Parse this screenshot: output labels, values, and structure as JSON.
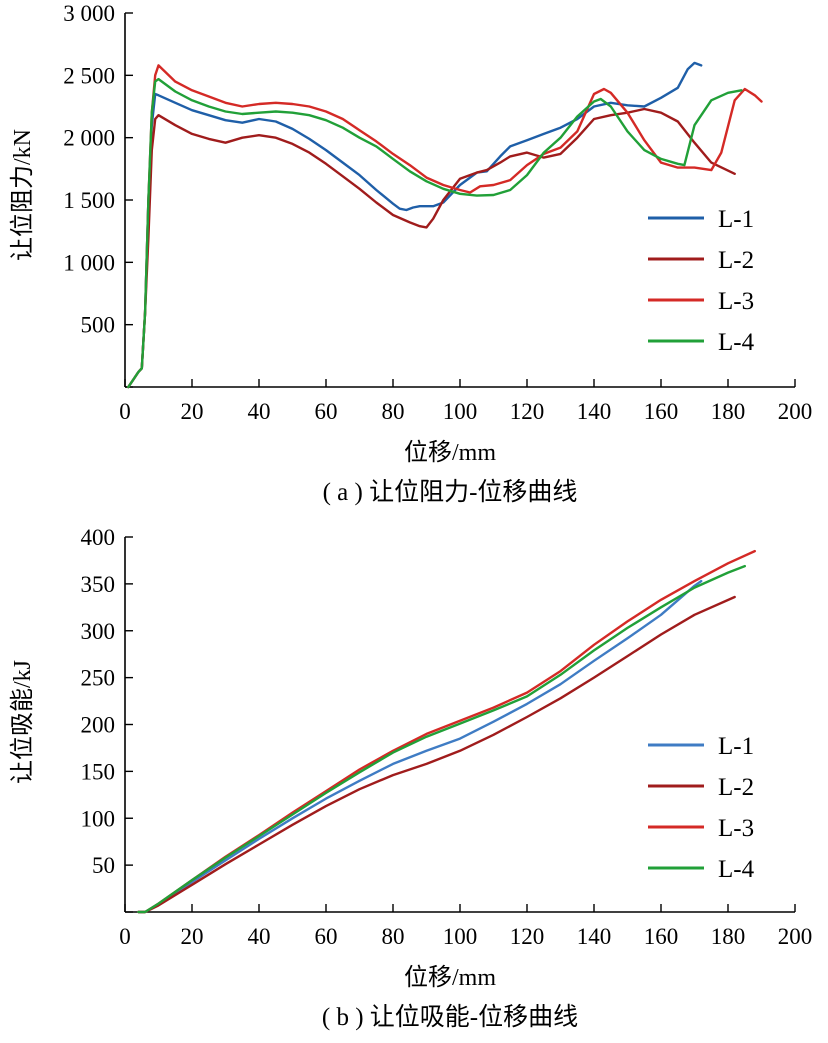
{
  "chart_data": [
    {
      "type": "line",
      "panel_id": "a",
      "caption": "( a ) 让位阻力-位移曲线",
      "xlabel": "位移/mm",
      "ylabel": "让位阻力/kN",
      "xlim": [
        0,
        200
      ],
      "ylim": [
        0,
        3000
      ],
      "x_ticks": [
        "0",
        "20",
        "40",
        "60",
        "80",
        "100",
        "120",
        "140",
        "160",
        "180",
        "200"
      ],
      "y_ticks": [
        "",
        "500",
        "1 000",
        "1 500",
        "2 000",
        "2 500",
        "3 000"
      ],
      "grid": false,
      "legend_position": "right",
      "series": [
        {
          "name": "L-1",
          "color": "#1f5fa8",
          "points": [
            [
              1,
              0
            ],
            [
              2,
              40
            ],
            [
              4,
              120
            ],
            [
              5,
              150
            ],
            [
              6,
              600
            ],
            [
              7,
              1500
            ],
            [
              8,
              2100
            ],
            [
              9,
              2350
            ],
            [
              10,
              2340
            ],
            [
              15,
              2280
            ],
            [
              20,
              2220
            ],
            [
              25,
              2180
            ],
            [
              30,
              2140
            ],
            [
              35,
              2120
            ],
            [
              40,
              2150
            ],
            [
              45,
              2130
            ],
            [
              50,
              2070
            ],
            [
              55,
              1990
            ],
            [
              60,
              1900
            ],
            [
              65,
              1800
            ],
            [
              70,
              1700
            ],
            [
              75,
              1580
            ],
            [
              80,
              1470
            ],
            [
              82,
              1430
            ],
            [
              84,
              1420
            ],
            [
              86,
              1440
            ],
            [
              88,
              1450
            ],
            [
              92,
              1450
            ],
            [
              95,
              1480
            ],
            [
              100,
              1620
            ],
            [
              105,
              1720
            ],
            [
              108,
              1730
            ],
            [
              112,
              1850
            ],
            [
              115,
              1930
            ],
            [
              120,
              1980
            ],
            [
              125,
              2030
            ],
            [
              130,
              2080
            ],
            [
              135,
              2150
            ],
            [
              140,
              2250
            ],
            [
              145,
              2280
            ],
            [
              150,
              2260
            ],
            [
              155,
              2250
            ],
            [
              160,
              2320
            ],
            [
              165,
              2400
            ],
            [
              168,
              2550
            ],
            [
              170,
              2600
            ],
            [
              172,
              2580
            ]
          ]
        },
        {
          "name": "L-2",
          "color": "#a01c1c",
          "points": [
            [
              1,
              0
            ],
            [
              2,
              40
            ],
            [
              4,
              120
            ],
            [
              5,
              150
            ],
            [
              6,
              600
            ],
            [
              7,
              1200
            ],
            [
              8,
              1900
            ],
            [
              9,
              2150
            ],
            [
              10,
              2180
            ],
            [
              15,
              2100
            ],
            [
              20,
              2030
            ],
            [
              25,
              1990
            ],
            [
              30,
              1960
            ],
            [
              35,
              2000
            ],
            [
              40,
              2020
            ],
            [
              45,
              2000
            ],
            [
              50,
              1950
            ],
            [
              55,
              1880
            ],
            [
              60,
              1790
            ],
            [
              65,
              1690
            ],
            [
              70,
              1590
            ],
            [
              75,
              1480
            ],
            [
              80,
              1380
            ],
            [
              85,
              1320
            ],
            [
              88,
              1290
            ],
            [
              90,
              1280
            ],
            [
              92,
              1350
            ],
            [
              95,
              1500
            ],
            [
              100,
              1670
            ],
            [
              105,
              1720
            ],
            [
              108,
              1740
            ],
            [
              112,
              1800
            ],
            [
              115,
              1850
            ],
            [
              120,
              1880
            ],
            [
              125,
              1840
            ],
            [
              130,
              1870
            ],
            [
              135,
              2000
            ],
            [
              140,
              2150
            ],
            [
              145,
              2180
            ],
            [
              150,
              2200
            ],
            [
              155,
              2230
            ],
            [
              160,
              2200
            ],
            [
              165,
              2130
            ],
            [
              170,
              1960
            ],
            [
              175,
              1800
            ],
            [
              182,
              1710
            ]
          ]
        },
        {
          "name": "L-3",
          "color": "#d42a26",
          "points": [
            [
              1,
              0
            ],
            [
              2,
              40
            ],
            [
              4,
              120
            ],
            [
              5,
              150
            ],
            [
              6,
              600
            ],
            [
              7,
              1500
            ],
            [
              8,
              2200
            ],
            [
              9,
              2500
            ],
            [
              10,
              2580
            ],
            [
              15,
              2450
            ],
            [
              20,
              2380
            ],
            [
              25,
              2330
            ],
            [
              30,
              2280
            ],
            [
              35,
              2250
            ],
            [
              40,
              2270
            ],
            [
              45,
              2280
            ],
            [
              50,
              2270
            ],
            [
              55,
              2250
            ],
            [
              60,
              2210
            ],
            [
              65,
              2150
            ],
            [
              70,
              2060
            ],
            [
              75,
              1970
            ],
            [
              80,
              1870
            ],
            [
              85,
              1780
            ],
            [
              90,
              1680
            ],
            [
              95,
              1620
            ],
            [
              100,
              1580
            ],
            [
              103,
              1560
            ],
            [
              106,
              1610
            ],
            [
              110,
              1620
            ],
            [
              115,
              1660
            ],
            [
              120,
              1780
            ],
            [
              125,
              1870
            ],
            [
              130,
              1920
            ],
            [
              135,
              2050
            ],
            [
              140,
              2350
            ],
            [
              143,
              2390
            ],
            [
              145,
              2360
            ],
            [
              150,
              2200
            ],
            [
              155,
              1980
            ],
            [
              160,
              1800
            ],
            [
              165,
              1760
            ],
            [
              170,
              1760
            ],
            [
              175,
              1740
            ],
            [
              178,
              1880
            ],
            [
              182,
              2300
            ],
            [
              185,
              2390
            ],
            [
              188,
              2340
            ],
            [
              190,
              2290
            ]
          ]
        },
        {
          "name": "L-4",
          "color": "#21a038",
          "points": [
            [
              1,
              0
            ],
            [
              2,
              40
            ],
            [
              4,
              120
            ],
            [
              5,
              150
            ],
            [
              6,
              600
            ],
            [
              7,
              1500
            ],
            [
              8,
              2200
            ],
            [
              9,
              2450
            ],
            [
              10,
              2470
            ],
            [
              15,
              2370
            ],
            [
              20,
              2300
            ],
            [
              25,
              2250
            ],
            [
              30,
              2210
            ],
            [
              35,
              2190
            ],
            [
              40,
              2200
            ],
            [
              45,
              2210
            ],
            [
              50,
              2200
            ],
            [
              55,
              2180
            ],
            [
              60,
              2140
            ],
            [
              65,
              2080
            ],
            [
              70,
              2000
            ],
            [
              75,
              1930
            ],
            [
              80,
              1830
            ],
            [
              85,
              1730
            ],
            [
              90,
              1650
            ],
            [
              95,
              1590
            ],
            [
              100,
              1550
            ],
            [
              105,
              1535
            ],
            [
              110,
              1540
            ],
            [
              115,
              1580
            ],
            [
              120,
              1700
            ],
            [
              125,
              1880
            ],
            [
              130,
              2000
            ],
            [
              135,
              2170
            ],
            [
              140,
              2290
            ],
            [
              142,
              2310
            ],
            [
              145,
              2250
            ],
            [
              150,
              2050
            ],
            [
              155,
              1900
            ],
            [
              160,
              1830
            ],
            [
              165,
              1790
            ],
            [
              167,
              1780
            ],
            [
              170,
              2100
            ],
            [
              175,
              2300
            ],
            [
              180,
              2360
            ],
            [
              184,
              2380
            ]
          ]
        }
      ]
    },
    {
      "type": "line",
      "panel_id": "b",
      "caption": "( b ) 让位吸能-位移曲线",
      "xlabel": "位移/mm",
      "ylabel": "让位吸能/kJ",
      "xlim": [
        0,
        200
      ],
      "ylim": [
        0,
        400
      ],
      "x_ticks": [
        "0",
        "20",
        "40",
        "60",
        "80",
        "100",
        "120",
        "140",
        "160",
        "180",
        "200"
      ],
      "y_ticks": [
        "",
        "50",
        "100",
        "150",
        "200",
        "250",
        "300",
        "350",
        "400"
      ],
      "grid": false,
      "legend_position": "right",
      "series": [
        {
          "name": "L-1",
          "color": "#3f7cc4",
          "points": [
            [
              4,
              0
            ],
            [
              6,
              0
            ],
            [
              10,
              8
            ],
            [
              20,
              32
            ],
            [
              30,
              55
            ],
            [
              40,
              78
            ],
            [
              50,
              100
            ],
            [
              60,
              121
            ],
            [
              70,
              140
            ],
            [
              80,
              158
            ],
            [
              90,
              172
            ],
            [
              100,
              185
            ],
            [
              110,
              203
            ],
            [
              120,
              222
            ],
            [
              130,
              243
            ],
            [
              140,
              268
            ],
            [
              150,
              292
            ],
            [
              160,
              317
            ],
            [
              170,
              348
            ],
            [
              172,
              353
            ]
          ]
        },
        {
          "name": "L-2",
          "color": "#a01c1c",
          "points": [
            [
              4,
              0
            ],
            [
              6,
              0
            ],
            [
              10,
              7
            ],
            [
              20,
              29
            ],
            [
              30,
              51
            ],
            [
              40,
              72
            ],
            [
              50,
              93
            ],
            [
              60,
              113
            ],
            [
              70,
              131
            ],
            [
              80,
              146
            ],
            [
              90,
              158
            ],
            [
              100,
              172
            ],
            [
              110,
              189
            ],
            [
              120,
              208
            ],
            [
              130,
              228
            ],
            [
              140,
              250
            ],
            [
              150,
              273
            ],
            [
              160,
              296
            ],
            [
              170,
              317
            ],
            [
              182,
              336
            ]
          ]
        },
        {
          "name": "L-3",
          "color": "#d42a26",
          "points": [
            [
              4,
              0
            ],
            [
              6,
              0
            ],
            [
              10,
              9
            ],
            [
              20,
              34
            ],
            [
              30,
              59
            ],
            [
              40,
              82
            ],
            [
              50,
              106
            ],
            [
              60,
              129
            ],
            [
              70,
              152
            ],
            [
              80,
              172
            ],
            [
              90,
              190
            ],
            [
              100,
              204
            ],
            [
              110,
              218
            ],
            [
              120,
              234
            ],
            [
              130,
              257
            ],
            [
              140,
              285
            ],
            [
              150,
              310
            ],
            [
              160,
              333
            ],
            [
              170,
              353
            ],
            [
              180,
              372
            ],
            [
              188,
              385
            ]
          ]
        },
        {
          "name": "L-4",
          "color": "#21a038",
          "points": [
            [
              4,
              0
            ],
            [
              6,
              0
            ],
            [
              10,
              9
            ],
            [
              20,
              34
            ],
            [
              30,
              58
            ],
            [
              40,
              81
            ],
            [
              50,
              104
            ],
            [
              60,
              127
            ],
            [
              70,
              149
            ],
            [
              80,
              170
            ],
            [
              90,
              187
            ],
            [
              100,
              201
            ],
            [
              110,
              215
            ],
            [
              120,
              230
            ],
            [
              130,
              253
            ],
            [
              140,
              279
            ],
            [
              150,
              303
            ],
            [
              160,
              325
            ],
            [
              170,
              346
            ],
            [
              180,
              362
            ],
            [
              185,
              369
            ]
          ]
        }
      ]
    }
  ]
}
